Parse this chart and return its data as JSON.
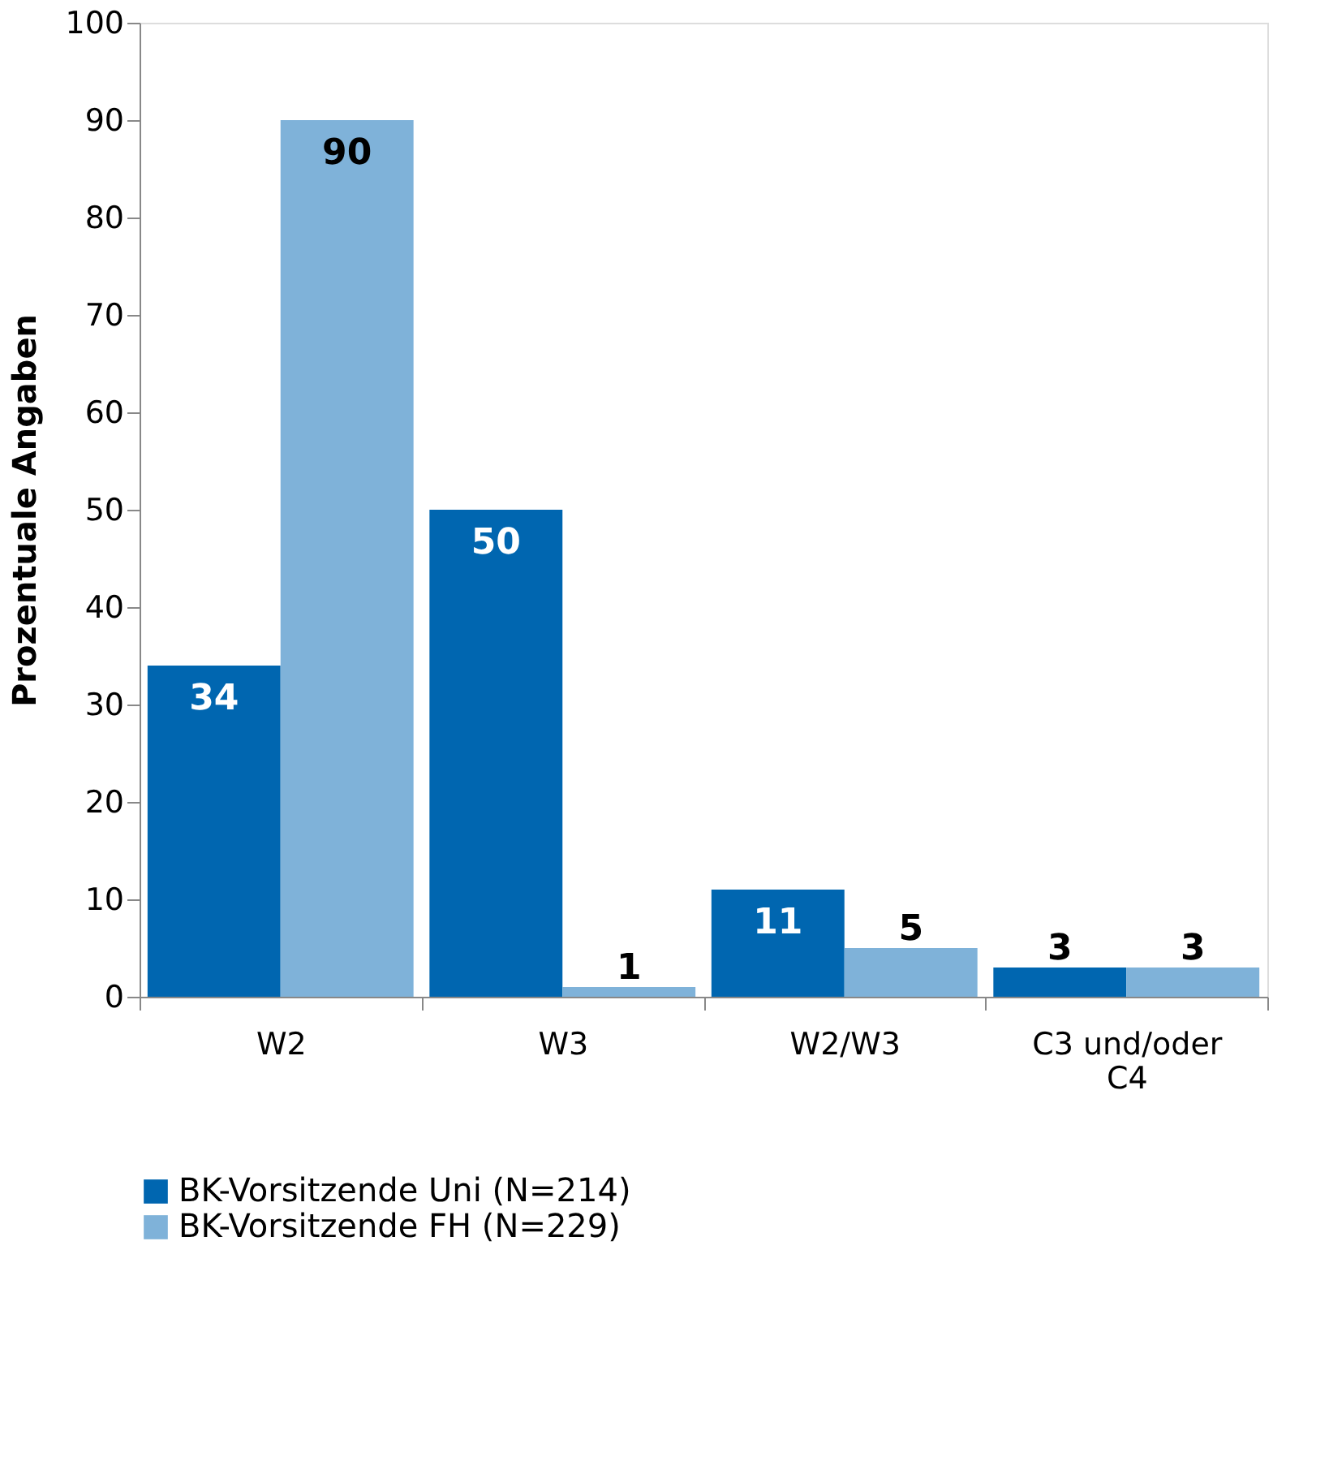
{
  "chart_data": {
    "type": "bar",
    "ylabel": "Prozentuale Angaben",
    "categories": [
      "W2",
      "W3",
      "W2/W3",
      "C3 und/oder C4"
    ],
    "series": [
      {
        "name": "BK-Vorsitzende Uni (N=214)",
        "color": "#0066b0",
        "values": [
          34,
          50,
          11,
          3
        ]
      },
      {
        "name": "BK-Vorsitzende FH (N=229)",
        "color": "#7fb2d9",
        "values": [
          90,
          1,
          5,
          3
        ]
      }
    ],
    "ylim": [
      0,
      100
    ],
    "yticks": [
      0,
      10,
      20,
      30,
      40,
      50,
      60,
      70,
      80,
      90,
      100
    ],
    "grid": false,
    "legend": "bottom",
    "data_labels": true
  }
}
